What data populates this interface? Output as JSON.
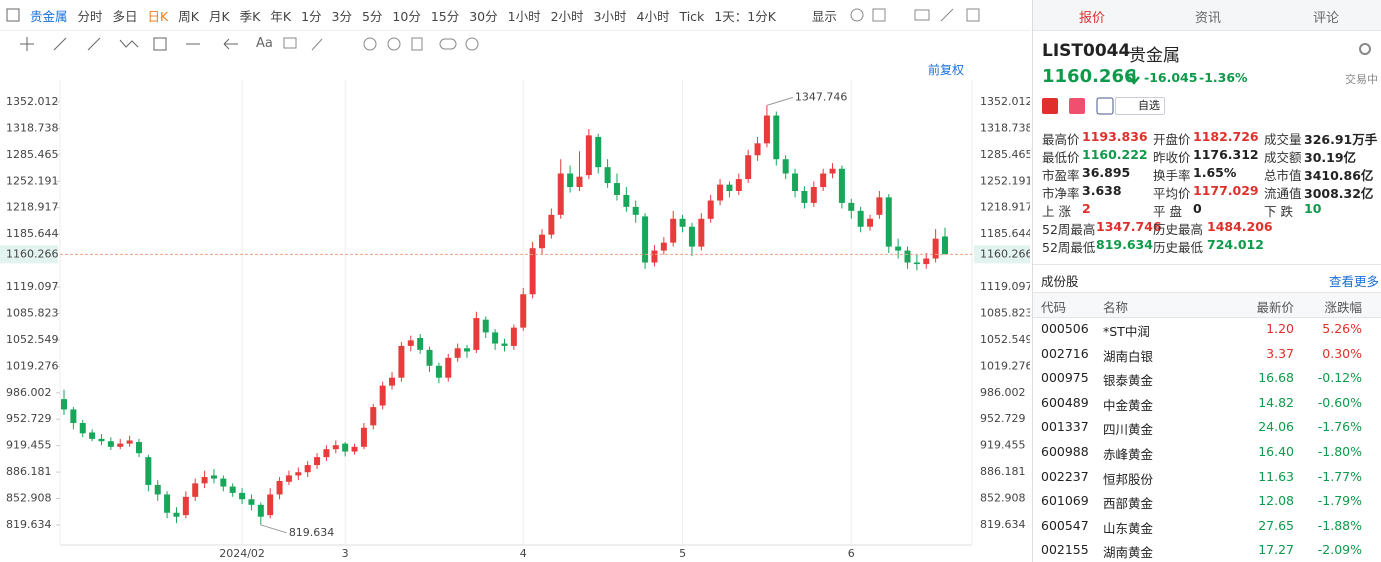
{
  "toolbar": {
    "symbol": "贵金属",
    "periods": [
      "分时",
      "多日",
      "日K",
      "周K",
      "月K",
      "季K",
      "年K",
      "1分",
      "3分",
      "5分",
      "10分",
      "15分",
      "30分",
      "1小时",
      "2小时",
      "3小时",
      "4小时",
      "Tick",
      "1天：1分K"
    ],
    "display": "显示",
    "font_tool": "Aa",
    "adjust": "前复权"
  },
  "chart_data": {
    "type": "candlestick",
    "up_color": "#e83b3b",
    "down_color": "#17a65a",
    "ylim": [
      794.4,
      1379.7
    ],
    "yticks": [
      1352.012,
      1318.738,
      1285.465,
      1252.191,
      1218.917,
      1185.644,
      1119.097,
      1085.823,
      1052.549,
      1019.276,
      986.002,
      952.729,
      919.455,
      886.181,
      852.908,
      819.634
    ],
    "categories": [
      null,
      null,
      null,
      null,
      null,
      null,
      null,
      null,
      null,
      null,
      null,
      null,
      null,
      null,
      null,
      null,
      null,
      null,
      null,
      "2024/02",
      null,
      null,
      null,
      null,
      null,
      null,
      null,
      null,
      null,
      null,
      "3",
      null,
      null,
      null,
      null,
      null,
      null,
      null,
      null,
      null,
      null,
      null,
      null,
      null,
      null,
      null,
      null,
      null,
      null,
      "4",
      null,
      null,
      null,
      null,
      null,
      null,
      null,
      null,
      null,
      null,
      null,
      null,
      null,
      null,
      null,
      null,
      "5",
      null,
      null,
      null,
      null,
      null,
      null,
      null,
      null,
      null,
      null,
      null,
      null,
      null,
      null,
      null,
      null,
      null,
      "6",
      null,
      null,
      null,
      null,
      null,
      null,
      null,
      null,
      null,
      null
    ],
    "candles": [
      [
        978,
        990,
        958,
        965
      ],
      [
        965,
        968,
        940,
        948
      ],
      [
        948,
        952,
        930,
        935
      ],
      [
        936,
        940,
        925,
        928
      ],
      [
        928,
        934,
        920,
        925
      ],
      [
        925,
        930,
        914,
        918
      ],
      [
        918,
        928,
        915,
        922
      ],
      [
        922,
        932,
        918,
        926
      ],
      [
        924,
        928,
        905,
        910
      ],
      [
        905,
        908,
        862,
        870
      ],
      [
        870,
        876,
        850,
        858
      ],
      [
        858,
        862,
        828,
        835
      ],
      [
        835,
        842,
        822,
        830
      ],
      [
        832,
        862,
        828,
        855
      ],
      [
        855,
        878,
        850,
        872
      ],
      [
        872,
        888,
        866,
        880
      ],
      [
        882,
        890,
        872,
        878
      ],
      [
        878,
        882,
        862,
        868
      ],
      [
        868,
        872,
        855,
        860
      ],
      [
        860,
        866,
        846,
        852
      ],
      [
        852,
        858,
        838,
        845
      ],
      [
        845,
        848,
        819.634,
        830
      ],
      [
        832,
        866,
        828,
        858
      ],
      [
        858,
        880,
        852,
        875
      ],
      [
        874,
        888,
        870,
        882
      ],
      [
        882,
        892,
        876,
        886
      ],
      [
        886,
        900,
        880,
        895
      ],
      [
        895,
        910,
        890,
        905
      ],
      [
        905,
        920,
        900,
        915
      ],
      [
        915,
        926,
        910,
        920
      ],
      [
        922,
        924,
        906,
        912
      ],
      [
        912,
        922,
        908,
        918
      ],
      [
        918,
        948,
        915,
        942
      ],
      [
        945,
        972,
        940,
        968
      ],
      [
        970,
        1000,
        965,
        995
      ],
      [
        995,
        1012,
        990,
        1005
      ],
      [
        1005,
        1050,
        1000,
        1045
      ],
      [
        1045,
        1058,
        1038,
        1052
      ],
      [
        1055,
        1060,
        1035,
        1040
      ],
      [
        1040,
        1044,
        1012,
        1020
      ],
      [
        1020,
        1024,
        998,
        1005
      ],
      [
        1005,
        1035,
        1000,
        1030
      ],
      [
        1030,
        1048,
        1025,
        1042
      ],
      [
        1042,
        1046,
        1030,
        1038
      ],
      [
        1040,
        1088,
        1036,
        1080
      ],
      [
        1078,
        1082,
        1055,
        1062
      ],
      [
        1062,
        1066,
        1040,
        1048
      ],
      [
        1048,
        1054,
        1038,
        1045
      ],
      [
        1045,
        1072,
        1040,
        1068
      ],
      [
        1068,
        1118,
        1064,
        1110
      ],
      [
        1110,
        1176,
        1105,
        1168
      ],
      [
        1168,
        1192,
        1160,
        1185
      ],
      [
        1185,
        1218,
        1180,
        1210
      ],
      [
        1210,
        1280,
        1205,
        1262
      ],
      [
        1262,
        1272,
        1238,
        1245
      ],
      [
        1245,
        1290,
        1240,
        1258
      ],
      [
        1260,
        1318,
        1255,
        1310
      ],
      [
        1308,
        1312,
        1262,
        1270
      ],
      [
        1270,
        1280,
        1244,
        1250
      ],
      [
        1250,
        1262,
        1228,
        1235
      ],
      [
        1235,
        1245,
        1214,
        1220
      ],
      [
        1220,
        1228,
        1200,
        1210
      ],
      [
        1208,
        1212,
        1142,
        1150
      ],
      [
        1150,
        1172,
        1145,
        1165
      ],
      [
        1165,
        1182,
        1160,
        1175
      ],
      [
        1175,
        1215,
        1170,
        1205
      ],
      [
        1205,
        1210,
        1188,
        1195
      ],
      [
        1195,
        1200,
        1158,
        1170
      ],
      [
        1170,
        1212,
        1165,
        1205
      ],
      [
        1205,
        1235,
        1200,
        1228
      ],
      [
        1228,
        1255,
        1222,
        1248
      ],
      [
        1248,
        1252,
        1232,
        1240
      ],
      [
        1240,
        1262,
        1235,
        1255
      ],
      [
        1255,
        1292,
        1250,
        1285
      ],
      [
        1285,
        1308,
        1278,
        1300
      ],
      [
        1300,
        1347.746,
        1295,
        1335
      ],
      [
        1335,
        1340,
        1272,
        1280
      ],
      [
        1280,
        1285,
        1255,
        1262
      ],
      [
        1262,
        1268,
        1232,
        1240
      ],
      [
        1240,
        1246,
        1218,
        1225
      ],
      [
        1225,
        1252,
        1220,
        1245
      ],
      [
        1245,
        1268,
        1240,
        1262
      ],
      [
        1262,
        1275,
        1256,
        1268
      ],
      [
        1268,
        1272,
        1218,
        1225
      ],
      [
        1225,
        1230,
        1205,
        1215
      ],
      [
        1215,
        1220,
        1188,
        1195
      ],
      [
        1195,
        1210,
        1190,
        1205
      ],
      [
        1210,
        1240,
        1205,
        1232
      ],
      [
        1232,
        1236,
        1162,
        1170
      ],
      [
        1170,
        1180,
        1155,
        1165
      ],
      [
        1165,
        1170,
        1142,
        1150
      ],
      [
        1150,
        1160,
        1140,
        1148
      ],
      [
        1148,
        1162,
        1142,
        1155
      ],
      [
        1155,
        1192,
        1150,
        1180
      ],
      [
        1182.726,
        1193.836,
        1160.222,
        1160.266
      ]
    ]
  },
  "panel": {
    "tabs": [
      "报价",
      "资讯",
      "评论"
    ],
    "code": "LIST0044",
    "name": "贵金属",
    "price": "1160.266",
    "change": "-16.045",
    "change_pct": "-1.36%",
    "status": "交易中",
    "watch": "自选",
    "stats": [
      [
        {
          "label": "最高价",
          "value": "1193.836",
          "tone": "up"
        },
        {
          "label": "开盘价",
          "value": "1182.726",
          "tone": "up"
        },
        {
          "label": "成交量",
          "value": "326.91万手"
        }
      ],
      [
        {
          "label": "最低价",
          "value": "1160.222",
          "tone": "down"
        },
        {
          "label": "昨收价",
          "value": "1176.312"
        },
        {
          "label": "成交额",
          "value": "30.19亿"
        }
      ],
      [
        {
          "label": "市盈率",
          "value": "36.895"
        },
        {
          "label": "换手率",
          "value": "1.65%"
        },
        {
          "label": "总市值",
          "value": "3410.86亿"
        }
      ],
      [
        {
          "label": "市净率",
          "value": "3.638"
        },
        {
          "label": "平均价",
          "value": "1177.029",
          "tone": "up"
        },
        {
          "label": "流通值",
          "value": "3008.32亿"
        }
      ],
      [
        {
          "label": "上 涨",
          "value": "2",
          "tone": "up"
        },
        {
          "label": "平 盘",
          "value": "0"
        },
        {
          "label": "下 跌",
          "value": "10",
          "tone": "down"
        }
      ],
      [
        {
          "label": "52周最高",
          "value": "1347.746",
          "tone": "up"
        },
        {
          "label": "历史最高",
          "value": "1484.206",
          "tone": "up"
        }
      ],
      [
        {
          "label": "52周最低",
          "value": "819.634",
          "tone": "down"
        },
        {
          "label": "历史最低",
          "value": "724.012",
          "tone": "down"
        }
      ]
    ],
    "section": "成份股",
    "more": "查看更多",
    "table": {
      "header": [
        "代码",
        "名称",
        "最新价",
        "涨跌幅"
      ],
      "rows": [
        [
          "000506",
          "*ST中润",
          "1.20",
          "5.26%"
        ],
        [
          "002716",
          "湖南白银",
          "3.37",
          "0.30%"
        ],
        [
          "000975",
          "银泰黄金",
          "16.68",
          "-0.12%"
        ],
        [
          "600489",
          "中金黄金",
          "14.82",
          "-0.60%"
        ],
        [
          "001337",
          "四川黄金",
          "24.06",
          "-1.76%"
        ],
        [
          "600988",
          "赤峰黄金",
          "16.40",
          "-1.80%"
        ],
        [
          "002237",
          "恒邦股份",
          "11.63",
          "-1.77%"
        ],
        [
          "601069",
          "西部黄金",
          "12.08",
          "-1.79%"
        ],
        [
          "600547",
          "山东黄金",
          "27.65",
          "-1.88%"
        ],
        [
          "002155",
          "湖南黄金",
          "17.27",
          "-2.09%"
        ]
      ]
    }
  }
}
